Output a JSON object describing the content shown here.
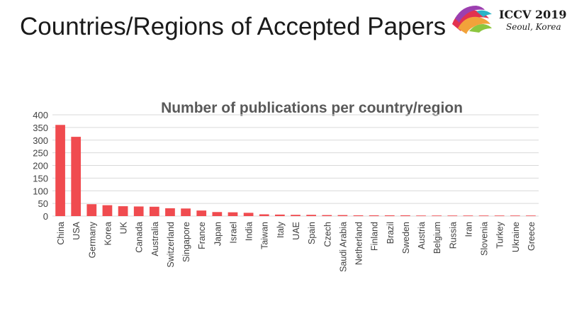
{
  "slide": {
    "title": "Countries/Regions of Accepted Papers",
    "logo": {
      "name": "ICCV 2019",
      "location": "Seoul, Korea"
    }
  },
  "colors": {
    "bar": "#f04b4f",
    "grid": "#d9d9d9",
    "text": "#404040",
    "title": "#595959"
  },
  "chart_data": {
    "type": "bar",
    "title": "Number of publications per country/region",
    "xlabel": "",
    "ylabel": "",
    "ylim": [
      0,
      400
    ],
    "yticks": [
      0,
      50,
      100,
      150,
      200,
      250,
      300,
      350,
      400
    ],
    "grid": true,
    "categories": [
      "China",
      "USA",
      "Germany",
      "Korea",
      "UK",
      "Canada",
      "Australia",
      "Switzerland",
      "Singapore",
      "France",
      "Japan",
      "Israel",
      "India",
      "Taiwan",
      "Italy",
      "UAE",
      "Spain",
      "Czech",
      "Saudi Arabia",
      "Netherland",
      "Finland",
      "Brazil",
      "Sweden",
      "Austria",
      "Belgium",
      "Russia",
      "Iran",
      "Slovenia",
      "Turkey",
      "Ukraine",
      "Greece"
    ],
    "values": [
      360,
      313,
      47,
      43,
      39,
      38,
      37,
      31,
      30,
      22,
      16,
      15,
      13,
      7,
      6,
      5,
      5,
      4,
      4,
      3,
      3,
      3,
      3,
      2,
      2,
      2,
      1,
      1,
      1,
      1,
      1
    ]
  }
}
